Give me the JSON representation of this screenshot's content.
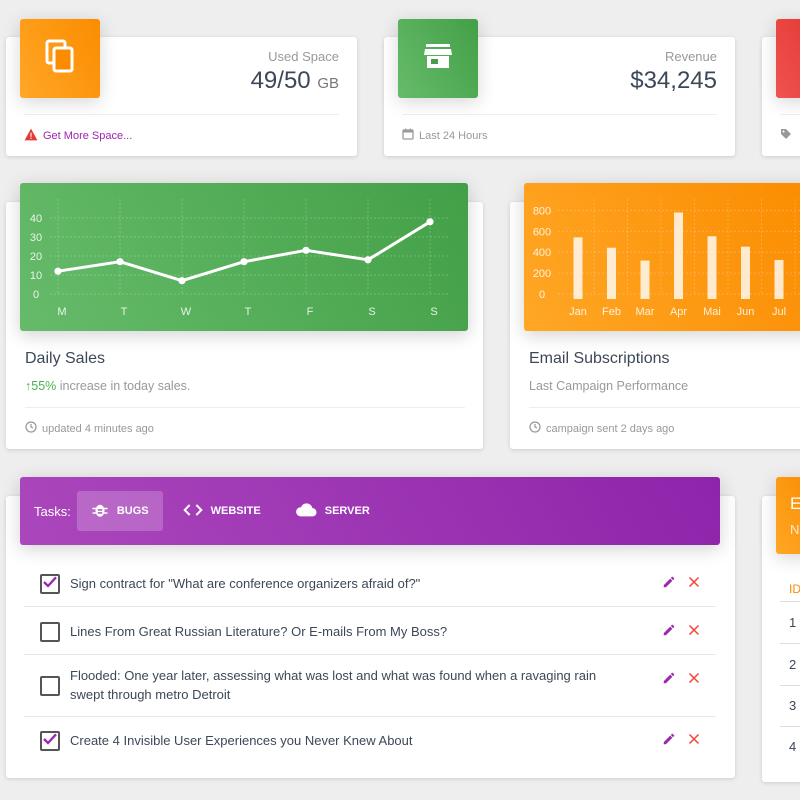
{
  "stats": [
    {
      "label": "Used Space",
      "value": "49/50",
      "unit": "GB",
      "footer": "Get More Space...",
      "footer_icon": "warning-icon",
      "tile_icon": "copy-icon"
    },
    {
      "label": "Revenue",
      "value": "$34,245",
      "unit": "",
      "footer": "Last 24 Hours",
      "footer_icon": "calendar-icon",
      "tile_icon": "store-icon"
    }
  ],
  "charts": [
    {
      "title": "Daily Sales",
      "category_prefix": "55%",
      "category_rest": " increase in today sales.",
      "footer": "updated 4 minutes ago"
    },
    {
      "title": "Email Subscriptions",
      "category": "Last Campaign Performance",
      "footer": "campaign sent 2 days ago"
    }
  ],
  "chart_data": [
    {
      "type": "line",
      "categories": [
        "M",
        "T",
        "W",
        "T",
        "F",
        "S",
        "S"
      ],
      "values": [
        12,
        17,
        7,
        17,
        23,
        18,
        38
      ],
      "yticks": [
        0,
        10,
        20,
        30,
        40
      ],
      "ylim": [
        0,
        50
      ],
      "color": "#ffffff"
    },
    {
      "type": "bar",
      "categories": [
        "Jan",
        "Feb",
        "Mar",
        "Apr",
        "Mai",
        "Jun",
        "Jul"
      ],
      "values": [
        542,
        443,
        320,
        780,
        553,
        453,
        326
      ],
      "yticks": [
        0,
        200,
        400,
        600,
        800
      ],
      "ylim": [
        0,
        1000
      ],
      "color": "#ffffff"
    }
  ],
  "tasks": {
    "label": "Tasks:",
    "tabs": [
      {
        "label": "BUGS",
        "icon": "bug-icon",
        "active": true
      },
      {
        "label": "WEBSITE",
        "icon": "code-icon",
        "active": false
      },
      {
        "label": "SERVER",
        "icon": "cloud-icon",
        "active": false
      }
    ],
    "items": [
      {
        "text": "Sign contract for \"What are conference organizers afraid of?\"",
        "checked": true
      },
      {
        "text": "Lines From Great Russian Literature? Or E-mails From My Boss?",
        "checked": false
      },
      {
        "text": "Flooded: One year later, assessing what was lost and what was found when a ravaging rain swept through metro Detroit",
        "checked": false
      },
      {
        "text": "Create 4 Invisible User Experiences you Never Knew About",
        "checked": true
      }
    ]
  },
  "right_partial": {
    "header_letter": "E",
    "header_sub": "N",
    "col_header": "ID",
    "rows": [
      "1",
      "2",
      "3",
      "4"
    ]
  },
  "colors": {
    "orange": "#fb8c00",
    "green": "#43a047",
    "red": "#e53935",
    "purple": "#8e24aa"
  }
}
